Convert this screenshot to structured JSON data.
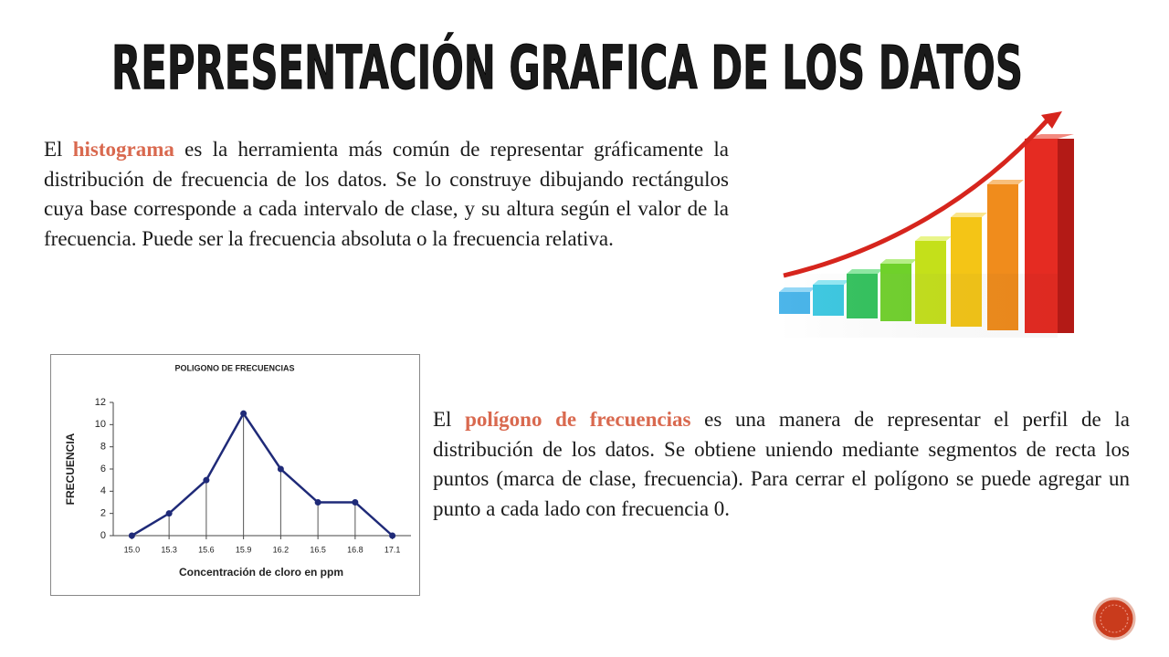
{
  "title": "REPRESENTACIÓN GRAFICA DE LOS DATOS",
  "paragraphs": [
    [
      "El ",
      "histograma",
      " es la herramienta más común de representar gráficamente la distribución de frecuencia de los datos. Se lo construye dibujando rectángulos cuya base corresponde a cada intervalo de clase, y su altura según el valor de la frecuencia. Puede ser la frecuencia absoluta o la frecuencia relativa."
    ],
    [
      "El ",
      "polígono de frecuencias",
      " es una manera de representar el perfil de la distribución de los datos. Se obtiene uniendo mediante segmentos de recta los puntos (marca de clase, frecuencia). Para cerrar el polígono se puede agregar un punto a cada lado con frecuencia 0."
    ]
  ],
  "chart_data": {
    "type": "line",
    "title": "POLIGONO DE FRECUENCIAS",
    "x_label": "Concentración de cloro en ppm",
    "y_label": "FRECUENCIA",
    "x": [
      15.0,
      15.3,
      15.6,
      15.9,
      16.2,
      16.5,
      16.8,
      17.1
    ],
    "values": [
      0,
      2,
      5,
      11,
      6,
      3,
      3,
      0
    ],
    "color": "#1f2a78",
    "drop_lines": true,
    "xlim": [
      14.85,
      17.25
    ],
    "xticks": [
      {
        "value": 15.0,
        "label": "15.0"
      },
      15.3,
      15.6,
      15.9,
      16.2,
      16.5,
      16.8,
      17.1
    ],
    "ylim": [
      0,
      12
    ],
    "yticks": [
      0,
      2,
      4,
      6,
      8,
      10,
      12
    ]
  }
}
